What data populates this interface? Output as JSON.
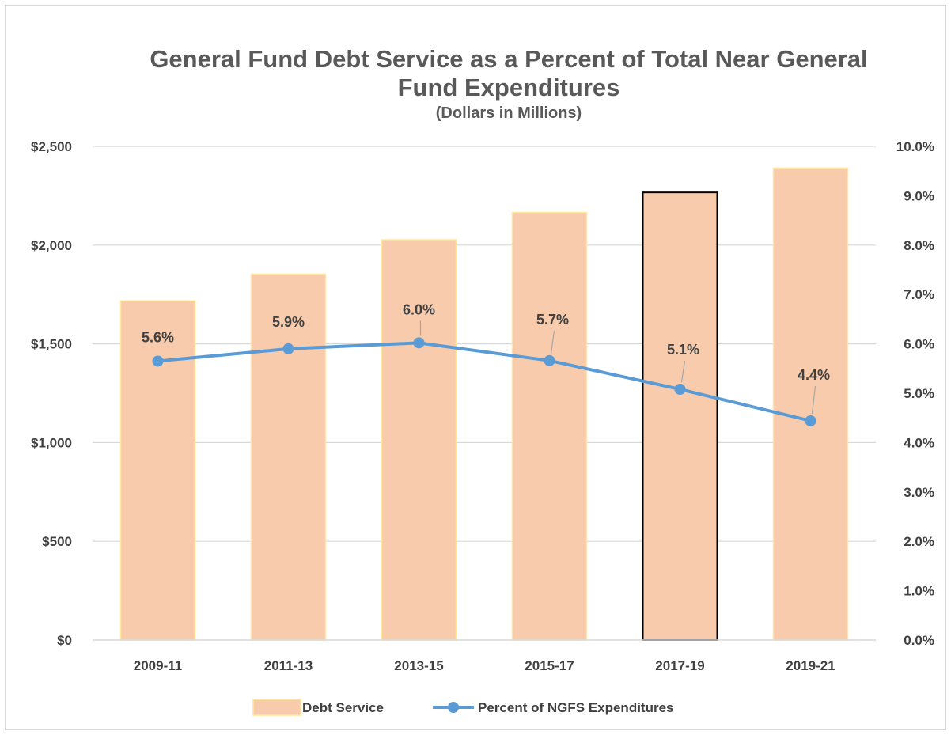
{
  "chart_data": {
    "type": "bar",
    "title": "General Fund Debt Service as a Percent of Total Near General Fund Expenditures",
    "title_lines": [
      "General Fund Debt Service as a Percent of Total Near General",
      "Fund Expenditures"
    ],
    "subtitle": "(Dollars in Millions)",
    "categories": [
      "2009-11",
      "2011-13",
      "2013-15",
      "2015-17",
      "2017-19",
      "2019-21"
    ],
    "series": [
      {
        "name": "Debt Service",
        "type": "bar",
        "axis": "left",
        "values": [
          1718,
          1853,
          2027,
          2165,
          2267,
          2390
        ],
        "color": "#f8cbad",
        "border": "#ffe699",
        "highlight_index": 4,
        "highlight_border": "#000000"
      },
      {
        "name": "Percent of NGFS Expenditures",
        "type": "line",
        "axis": "right",
        "values": [
          5.65,
          5.9,
          6.02,
          5.66,
          5.08,
          4.44
        ],
        "labels": [
          "5.6%",
          "5.9%",
          "6.0%",
          "5.7%",
          "5.1%",
          "4.4%"
        ],
        "color": "#5b9bd5"
      }
    ],
    "y_left": {
      "ylim": [
        0,
        2500
      ],
      "ticks": [
        0,
        500,
        1000,
        1500,
        2000,
        2500
      ],
      "tick_labels": [
        "$0",
        "$500",
        "$1,000",
        "$1,500",
        "$2,000",
        "$2,500"
      ]
    },
    "y_right": {
      "ylim": [
        0,
        10
      ],
      "ticks": [
        0,
        1,
        2,
        3,
        4,
        5,
        6,
        7,
        8,
        9,
        10
      ],
      "tick_labels": [
        "0.0%",
        "1.0%",
        "2.0%",
        "3.0%",
        "4.0%",
        "5.0%",
        "6.0%",
        "7.0%",
        "8.0%",
        "9.0%",
        "10.0%"
      ]
    },
    "grid": true,
    "grid_color": "#d9d9d9",
    "legend": "bottom"
  }
}
